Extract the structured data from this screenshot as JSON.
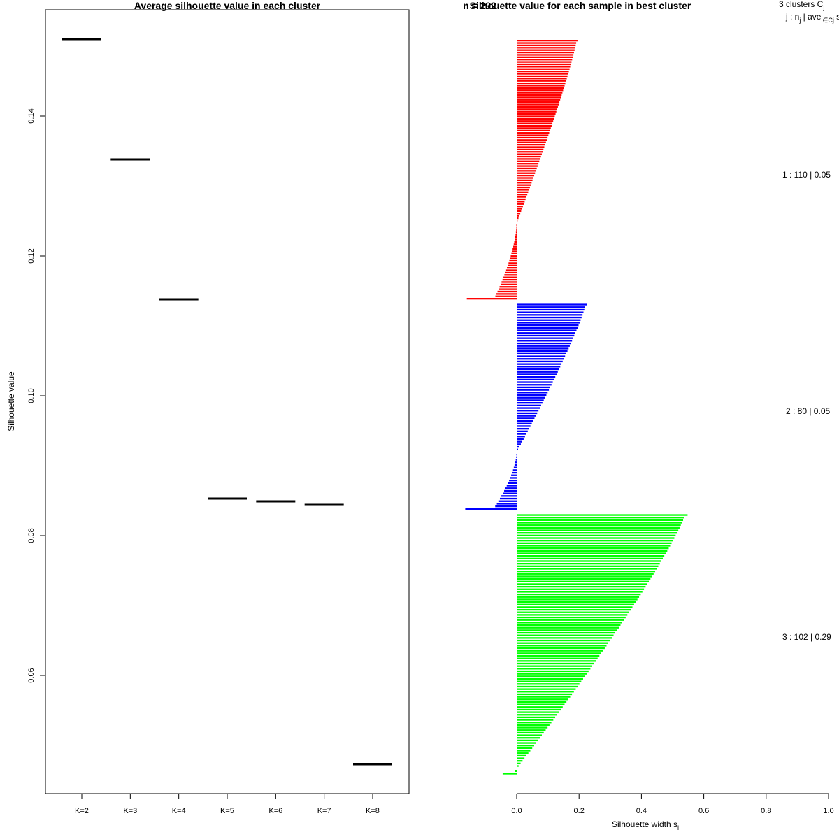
{
  "chart_data": [
    {
      "type": "scatter",
      "marker": "horizontal-segment",
      "title": "Average silhouette value in each cluster",
      "xlabel": "",
      "ylabel": "Silhouette value",
      "categories": [
        "K=2",
        "K=3",
        "K=4",
        "K=5",
        "K=6",
        "K=7",
        "K=8"
      ],
      "values": [
        0.151,
        0.1338,
        0.1138,
        0.0853,
        0.0849,
        0.0844,
        0.0473
      ],
      "yticks": [
        0.06,
        0.08,
        0.1,
        0.12,
        0.14
      ],
      "ytick_labels": [
        "0.06",
        "0.08",
        "0.10",
        "0.12",
        "0.14"
      ],
      "ylim": [
        0.0458,
        0.1552
      ],
      "grid": false,
      "color": "#000000"
    },
    {
      "type": "bar",
      "orientation": "horizontal",
      "title": "Silhouette value for each sample in best cluster",
      "title_overlay": "n = 292",
      "xlabel": "Silhouette width s",
      "xlabel_subscript": "i",
      "xlim": [
        -0.2,
        1.0
      ],
      "xticks": [
        0.0,
        0.2,
        0.4,
        0.6,
        0.8,
        1.0
      ],
      "xtick_labels": [
        "0.0",
        "0.2",
        "0.4",
        "0.6",
        "0.8",
        "1.0"
      ],
      "legend_header": {
        "line1": "3  clusters  C",
        "line1_sub": "j",
        "line2": "j :  n",
        "line2_sub1": "j",
        "line2_mid": " | ave",
        "line2_sub2": "i∈Cj",
        "line2_end": "  s"
      },
      "clusters": [
        {
          "name": "1",
          "n": 110,
          "avg_label": "0.05",
          "summary": "1 :  110  |  0.05",
          "color": "#ff0000",
          "max": 0.195,
          "min_neg": -0.16,
          "pos_count": 78,
          "neg_count": 32
        },
        {
          "name": "2",
          "n": 80,
          "avg_label": "0.05",
          "summary": "2 :  80  |  0.05",
          "color": "#0000ff",
          "max": 0.225,
          "min_neg": -0.165,
          "pos_count": 58,
          "neg_count": 22
        },
        {
          "name": "3",
          "n": 102,
          "avg_label": "0.29",
          "summary": "3 :  102  |  0.29",
          "color": "#00ff00",
          "max": 0.548,
          "min_neg": -0.045,
          "pos_count": 100,
          "neg_count": 2
        }
      ]
    }
  ]
}
